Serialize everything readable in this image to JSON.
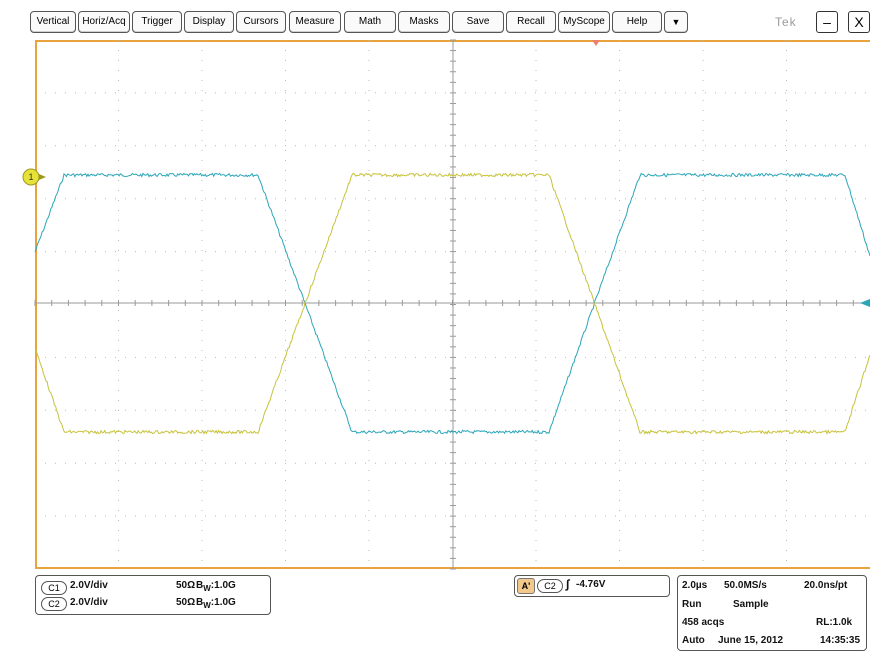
{
  "menu": {
    "buttons": [
      "Vertical",
      "Horiz/Acq",
      "Trigger",
      "Display",
      "Cursors",
      "Measure",
      "Math",
      "Masks",
      "Save",
      "Recall",
      "MyScope",
      "Help"
    ],
    "dropdown_glyph": "▼",
    "brand": "Tek",
    "minimize_glyph": "–",
    "close_glyph": "X"
  },
  "colors": {
    "graticule_border": "#e8a33c",
    "channel1": "#c8c23a",
    "channel2": "#2aa6b8",
    "grid": "#b8b8b8",
    "trigger_marker": "#ee7f6a"
  },
  "markers": {
    "ch1_ground_label": "1"
  },
  "channels": [
    {
      "label": "C1",
      "scale": "2.0V/div",
      "impedance": "50Ω",
      "bw_prefix": "B",
      "bw_sub": "W",
      "bw_value": ":1.0G"
    },
    {
      "label": "C2",
      "scale": "2.0V/div",
      "impedance": "50Ω",
      "bw_prefix": "B",
      "bw_sub": "W",
      "bw_value": ":1.0G"
    }
  ],
  "trigger": {
    "mode": "A'",
    "source": "C2",
    "slope_glyph": "∫",
    "level": "-4.76V"
  },
  "acquisition": {
    "timebase": "2.0µs",
    "sample_rate": "50.0MS/s",
    "resolution": "20.0ns/pt",
    "run_state": "Run",
    "acq_mode": "Sample",
    "acq_count": "458 acqs",
    "record_length": "RL:1.0k",
    "trigger_mode": "Auto",
    "date": "June 15, 2012",
    "time": "14:35:35"
  }
}
